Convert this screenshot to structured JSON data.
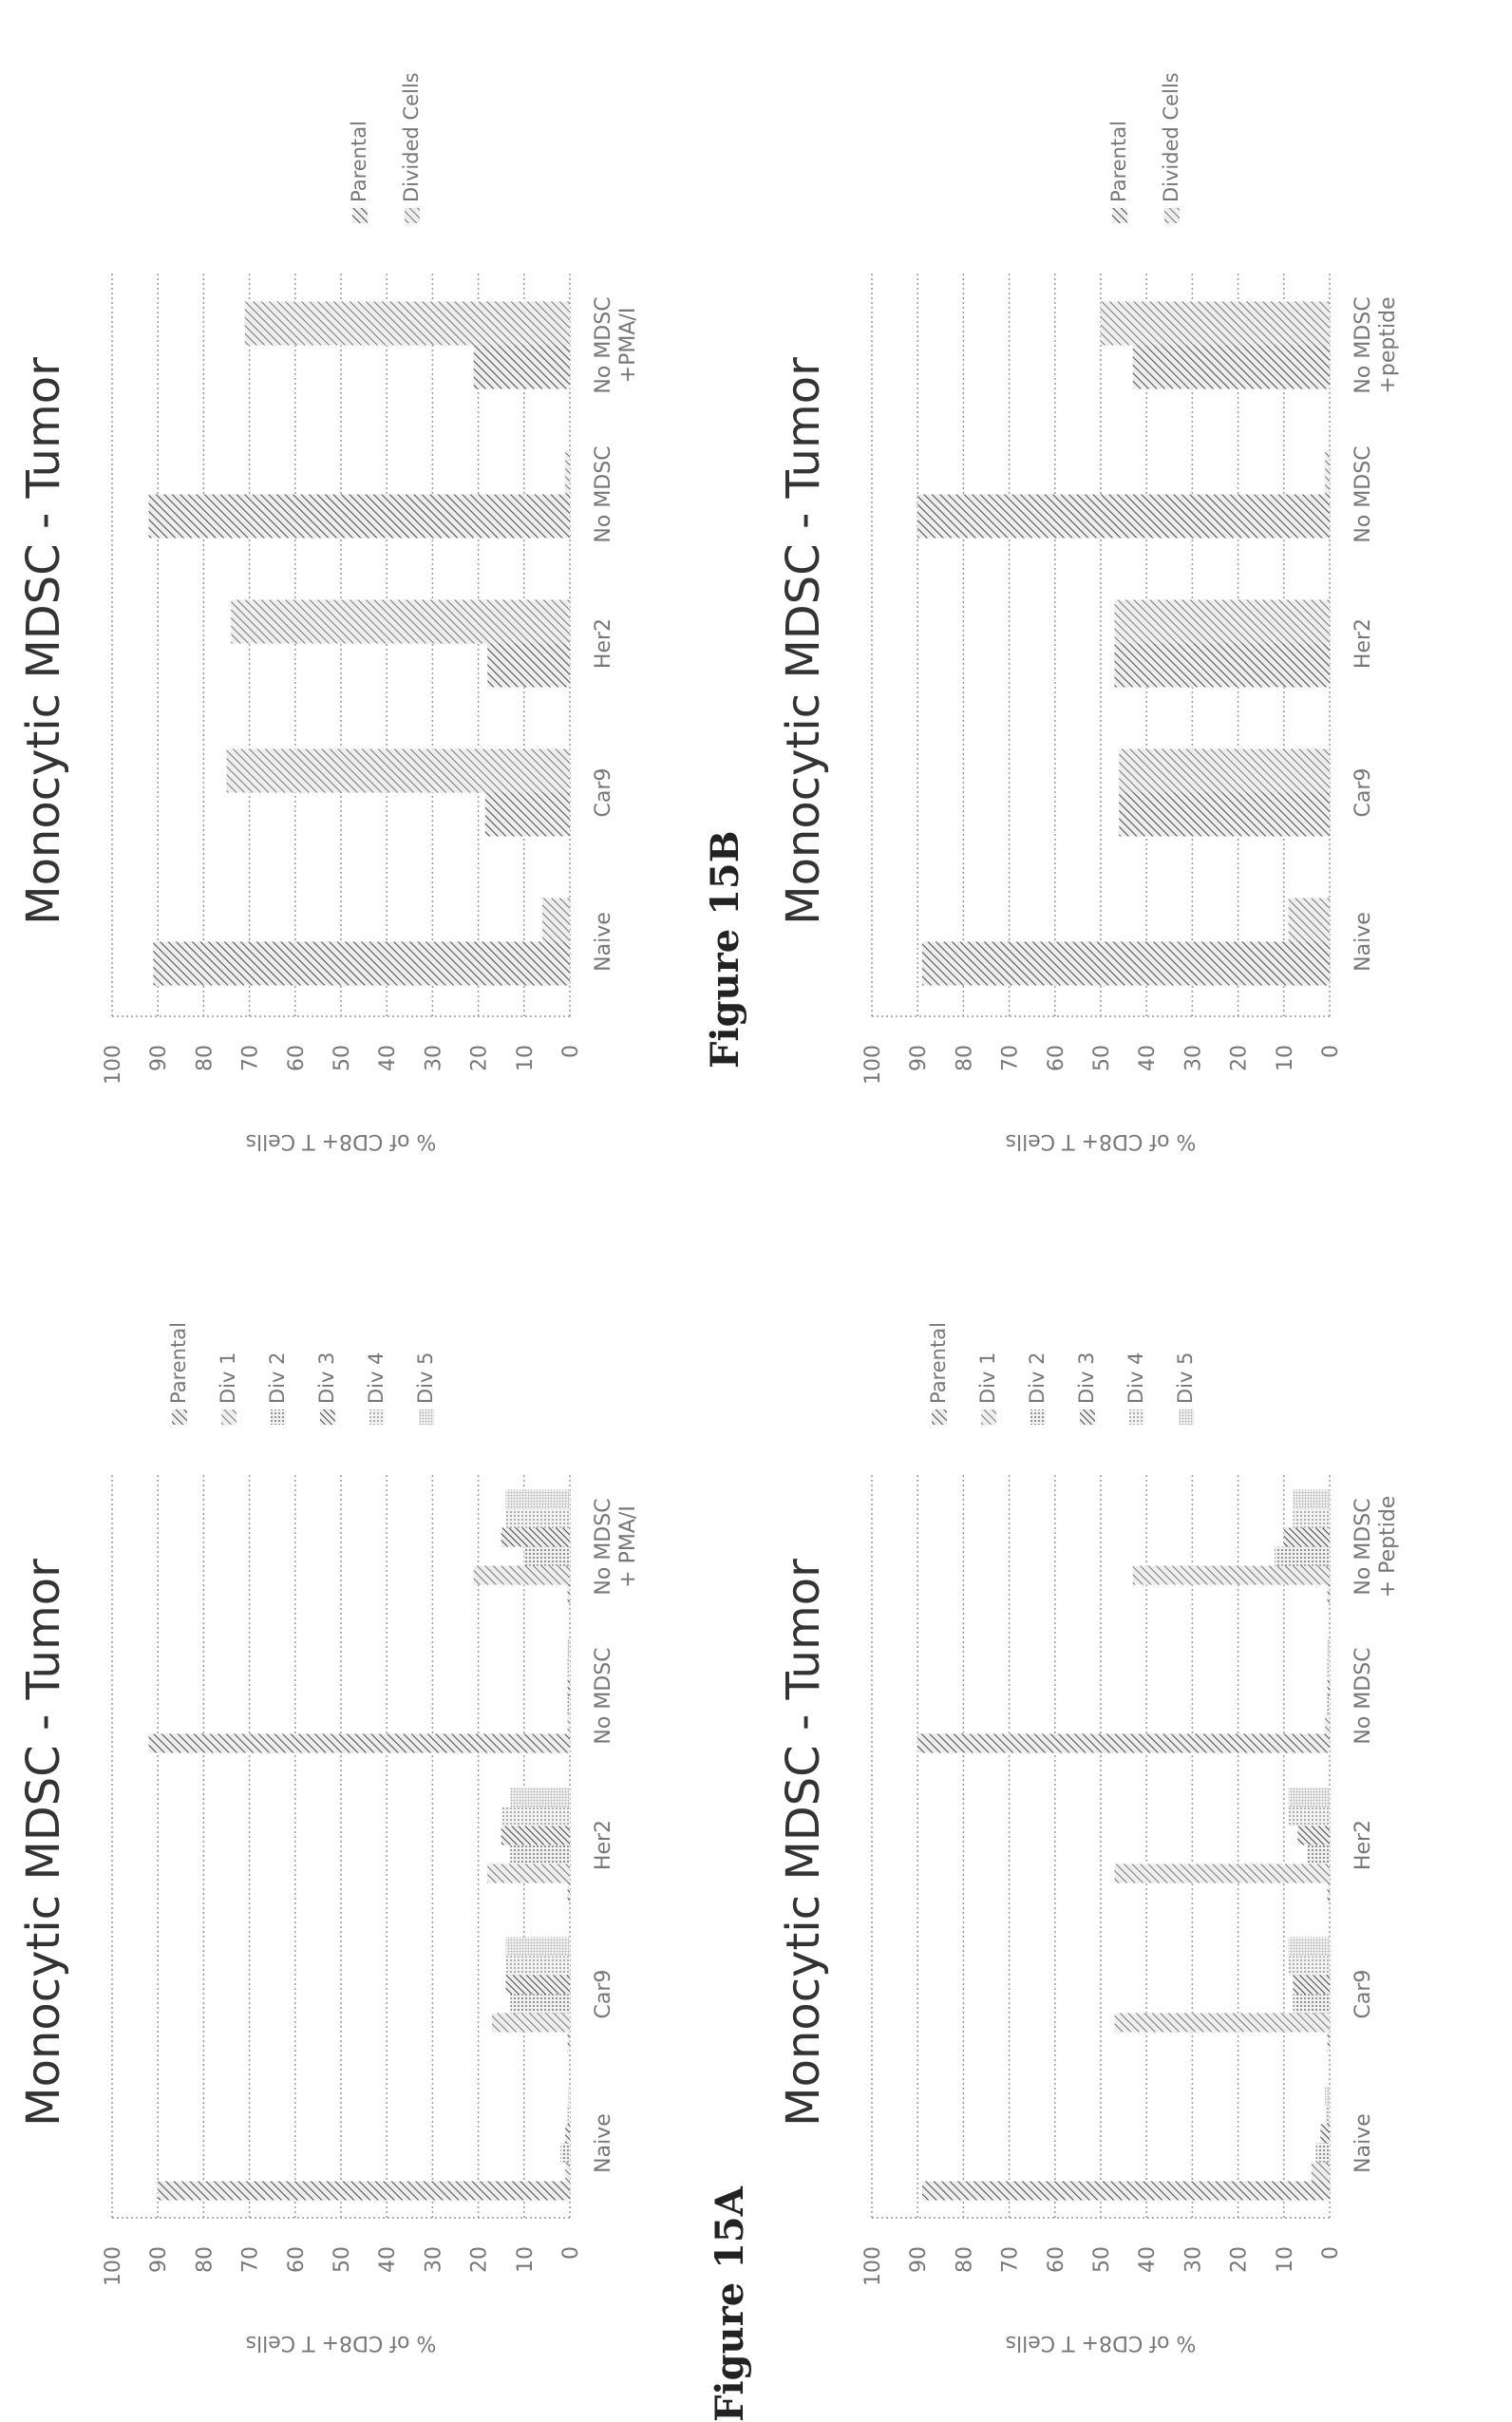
{
  "figures": [
    {
      "label": "Figure 15A"
    },
    {
      "label": "Figure 15B"
    }
  ],
  "chart_data": [
    {
      "type": "bar",
      "title": "Monocytic MDSC - Tumor",
      "ylabel": "% of CD8+ T Cells",
      "xlabel": "",
      "ylim": [
        0,
        100
      ],
      "yticks": [
        "0",
        "10",
        "20",
        "30",
        "40",
        "50",
        "60",
        "70",
        "80",
        "90",
        "100"
      ],
      "grid": true,
      "legend": "right",
      "categories": [
        "Naive",
        "Car9",
        "Her2",
        "No MDSC",
        "No MDSC + PMA/I"
      ],
      "series": [
        {
          "name": "Parental",
          "values": [
            90,
            0.5,
            0.5,
            92,
            0.5
          ]
        },
        {
          "name": "Div 1",
          "values": [
            1,
            17,
            18,
            0.5,
            21
          ]
        },
        {
          "name": "Div 2",
          "values": [
            2,
            13,
            13,
            0.5,
            10
          ]
        },
        {
          "name": "Div 3",
          "values": [
            1,
            14,
            15,
            0.5,
            15
          ]
        },
        {
          "name": "Div 4",
          "values": [
            0.5,
            14,
            15,
            0.5,
            14
          ]
        },
        {
          "name": "Div 5",
          "values": [
            0.3,
            14,
            13,
            0.5,
            14
          ]
        }
      ]
    },
    {
      "type": "bar",
      "title": "Monocytic MDSC - Tumor",
      "ylabel": "% of CD8+ T Cells",
      "xlabel": "",
      "ylim": [
        0,
        100
      ],
      "yticks": [
        "0",
        "10",
        "20",
        "30",
        "40",
        "50",
        "60",
        "70",
        "80",
        "90",
        "100"
      ],
      "grid": true,
      "legend": "right",
      "categories": [
        "Naive",
        "Car9",
        "Her2",
        "No MDSC",
        "No MDSC + Peptide"
      ],
      "series": [
        {
          "name": "Parental",
          "values": [
            89,
            0.5,
            0.5,
            90,
            0.5
          ]
        },
        {
          "name": "Div 1",
          "values": [
            4,
            47,
            47,
            1,
            43
          ]
        },
        {
          "name": "Div 2",
          "values": [
            3,
            8,
            5,
            0.5,
            12
          ]
        },
        {
          "name": "Div 3",
          "values": [
            2,
            8,
            7,
            0.5,
            10
          ]
        },
        {
          "name": "Div 4",
          "values": [
            1,
            9,
            9,
            0.5,
            8
          ]
        },
        {
          "name": "Div 5",
          "values": [
            1,
            9,
            9,
            0.5,
            8
          ]
        }
      ]
    },
    {
      "type": "bar",
      "title": "Monocytic MDSC - Tumor",
      "ylabel": "% of CD8+ T Cells",
      "xlabel": "",
      "ylim": [
        0,
        100
      ],
      "yticks": [
        "0",
        "10",
        "20",
        "30",
        "40",
        "50",
        "60",
        "70",
        "80",
        "90",
        "100"
      ],
      "grid": true,
      "legend": "right",
      "categories": [
        "Naive",
        "Car9",
        "Her2",
        "No MDSC",
        "No MDSC +PMA/I"
      ],
      "series": [
        {
          "name": "Parental",
          "values": [
            91,
            18.5,
            18,
            92,
            21
          ]
        },
        {
          "name": "Divided Cells",
          "values": [
            6,
            75,
            74,
            1,
            71
          ]
        }
      ]
    },
    {
      "type": "bar",
      "title": "Monocytic MDSC - Tumor",
      "ylabel": "% of CD8+ T Cells",
      "xlabel": "",
      "ylim": [
        0,
        100
      ],
      "yticks": [
        "0",
        "10",
        "20",
        "30",
        "40",
        "50",
        "60",
        "70",
        "80",
        "90",
        "100"
      ],
      "grid": true,
      "legend": "right",
      "categories": [
        "Naive",
        "Car9",
        "Her2",
        "No MDSC",
        "No MDSC +peptide"
      ],
      "series": [
        {
          "name": "Parental",
          "values": [
            89,
            46,
            47,
            90,
            43
          ]
        },
        {
          "name": "Divided Cells",
          "values": [
            9,
            46,
            47,
            1,
            50
          ]
        }
      ]
    }
  ]
}
